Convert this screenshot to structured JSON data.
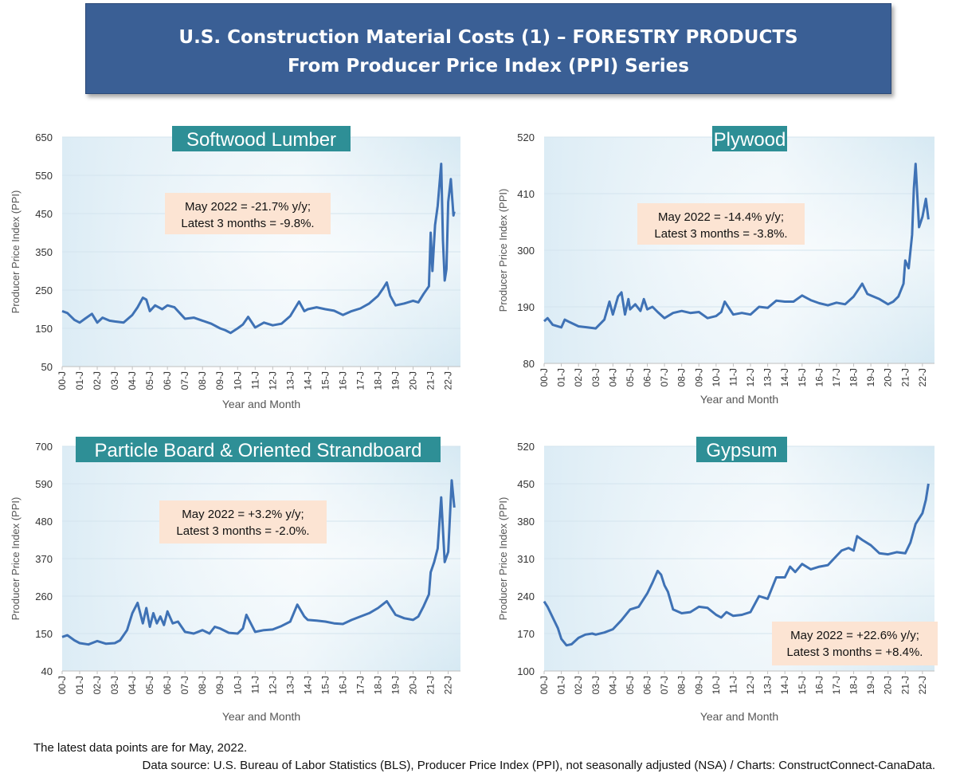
{
  "header": {
    "title_line1": "U.S. Construction Material Costs (1) – FORESTRY PRODUCTS",
    "title_line2": "From Producer Price Index (PPI) Series"
  },
  "footer": {
    "latest_note": "The latest data points are for May, 2022.",
    "source": "Data source: U.S. Bureau of Labor Statistics (BLS), Producer Price Index (PPI), not seasonally adjusted (NSA) / Charts: ConstructConnect-CanaData."
  },
  "colors": {
    "line": "#3f72b5",
    "plot_bg_top": "#ffffff",
    "plot_bg_bottom": "#d6e9f3",
    "title_bg": "#2e8f96",
    "callout_bg": "#fce4d3",
    "grid": "#d4e4ee"
  },
  "chart_data": [
    {
      "type": "line",
      "title": "Softwood Lumber",
      "ylabel": "Producer Price Index (PPI)",
      "xlabel": "Year and Month",
      "ylim": [
        50,
        650
      ],
      "yticks": [
        50,
        150,
        250,
        350,
        450,
        550,
        650
      ],
      "xticks": [
        "00-J",
        "01-J",
        "02-J",
        "03-J",
        "04-J",
        "05-J",
        "06-J",
        "07-J",
        "08-J",
        "09-J",
        "10-J",
        "11-J",
        "12-J",
        "13-J",
        "14-J",
        "15-J",
        "16-J",
        "17-J",
        "18-J",
        "19-J",
        "20-J",
        "21-J",
        "22-J"
      ],
      "annotation": [
        "May 2022 = -21.7% y/y;",
        "Latest 3 months = -9.8%."
      ],
      "grid": true,
      "series": [
        {
          "x": [
            2000.0,
            2000.3,
            2000.7,
            2001.0,
            2001.3,
            2001.7,
            2002.0,
            2002.3,
            2002.7,
            2003.0,
            2003.5,
            2004.0,
            2004.3,
            2004.6,
            2004.8,
            2005.0,
            2005.3,
            2005.7,
            2006.0,
            2006.4,
            2006.8,
            2007.0,
            2007.5,
            2008.0,
            2008.5,
            2009.0,
            2009.3,
            2009.6,
            2010.0,
            2010.3,
            2010.6,
            2011.0,
            2011.5,
            2012.0,
            2012.5,
            2013.0,
            2013.3,
            2013.5,
            2013.8,
            2014.0,
            2014.5,
            2015.0,
            2015.5,
            2016.0,
            2016.5,
            2017.0,
            2017.5,
            2018.0,
            2018.3,
            2018.5,
            2018.7,
            2019.0,
            2019.5,
            2020.0,
            2020.3,
            2020.6,
            2020.9,
            2021.0,
            2021.1,
            2021.25,
            2021.4,
            2021.6,
            2021.7,
            2021.8,
            2021.9,
            2022.0,
            2022.15,
            2022.3,
            2022.35
          ],
          "y": [
            195,
            190,
            172,
            165,
            175,
            188,
            165,
            178,
            170,
            168,
            165,
            185,
            205,
            230,
            225,
            195,
            210,
            200,
            210,
            205,
            185,
            175,
            178,
            170,
            162,
            150,
            145,
            138,
            150,
            160,
            180,
            152,
            165,
            158,
            162,
            182,
            205,
            220,
            195,
            200,
            205,
            200,
            196,
            185,
            195,
            202,
            215,
            235,
            255,
            270,
            235,
            210,
            215,
            222,
            218,
            240,
            260,
            400,
            300,
            420,
            470,
            580,
            380,
            275,
            305,
            480,
            540,
            445,
            455
          ]
        }
      ]
    },
    {
      "type": "line",
      "title": "Plywood",
      "ylabel": "Producer Price Index (PPI)",
      "xlabel": "Year and Month",
      "ylim": [
        80,
        520
      ],
      "yticks": [
        80,
        190,
        300,
        410,
        520
      ],
      "xticks": [
        "00-J",
        "01-J",
        "02-J",
        "03-J",
        "04-J",
        "05-J",
        "06-J",
        "07-J",
        "08-J",
        "09-J",
        "10-J",
        "11-J",
        "12-J",
        "13-J",
        "14-J",
        "15-J",
        "16-J",
        "17-J",
        "18-J",
        "19-J",
        "20-J",
        "21-J",
        "22-J"
      ],
      "annotation": [
        "May 2022 = -14.4% y/y;",
        "Latest 3 months = -3.8%."
      ],
      "grid": true,
      "series": [
        {
          "x": [
            2000.0,
            2000.2,
            2000.5,
            2001.0,
            2001.2,
            2001.5,
            2002.0,
            2002.5,
            2003.0,
            2003.5,
            2003.8,
            2004.0,
            2004.3,
            2004.5,
            2004.7,
            2004.9,
            2005.0,
            2005.3,
            2005.6,
            2005.8,
            2006.0,
            2006.3,
            2006.6,
            2007.0,
            2007.5,
            2008.0,
            2008.5,
            2009.0,
            2009.5,
            2010.0,
            2010.3,
            2010.5,
            2011.0,
            2011.5,
            2012.0,
            2012.5,
            2013.0,
            2013.5,
            2014.0,
            2014.5,
            2015.0,
            2015.5,
            2016.0,
            2016.5,
            2017.0,
            2017.5,
            2018.0,
            2018.3,
            2018.5,
            2018.8,
            2019.0,
            2019.5,
            2020.0,
            2020.3,
            2020.6,
            2020.9,
            2021.0,
            2021.2,
            2021.4,
            2021.5,
            2021.6,
            2021.8,
            2022.0,
            2022.2,
            2022.35
          ],
          "y": [
            162,
            168,
            155,
            150,
            165,
            160,
            152,
            150,
            148,
            165,
            200,
            175,
            210,
            218,
            175,
            205,
            185,
            195,
            182,
            205,
            185,
            190,
            180,
            168,
            178,
            182,
            178,
            180,
            168,
            172,
            180,
            200,
            175,
            178,
            175,
            190,
            188,
            202,
            200,
            200,
            212,
            203,
            197,
            193,
            198,
            195,
            210,
            225,
            235,
            215,
            212,
            205,
            195,
            200,
            210,
            235,
            280,
            265,
            330,
            420,
            468,
            345,
            365,
            400,
            360
          ]
        }
      ]
    },
    {
      "type": "line",
      "title": "Particle Board & Oriented Strandboard",
      "ylabel": "Producer Price Index (PPI)",
      "xlabel": "Year and Month",
      "ylim": [
        40,
        700
      ],
      "yticks": [
        40,
        150,
        260,
        370,
        480,
        590,
        700
      ],
      "xticks": [
        "00-J",
        "01-J",
        "02-J",
        "03-J",
        "04-J",
        "05-J",
        "06-J",
        "07-J",
        "08-J",
        "09-J",
        "10-J",
        "11-J",
        "12-J",
        "13-J",
        "14-J",
        "15-J",
        "16-J",
        "17-J",
        "18-J",
        "19-J",
        "20-J",
        "21-J",
        "22-J"
      ],
      "annotation": [
        "May 2022 = +3.2% y/y;",
        "Latest 3 months = -2.0%."
      ],
      "grid": true,
      "series": [
        {
          "x": [
            2000.0,
            2000.3,
            2000.7,
            2001.0,
            2001.5,
            2002.0,
            2002.5,
            2003.0,
            2003.3,
            2003.7,
            2004.0,
            2004.3,
            2004.6,
            2004.8,
            2005.0,
            2005.2,
            2005.4,
            2005.6,
            2005.8,
            2006.0,
            2006.3,
            2006.6,
            2007.0,
            2007.5,
            2008.0,
            2008.4,
            2008.7,
            2009.0,
            2009.5,
            2010.0,
            2010.3,
            2010.5,
            2011.0,
            2011.5,
            2012.0,
            2012.5,
            2013.0,
            2013.4,
            2013.8,
            2014.0,
            2014.5,
            2015.0,
            2015.5,
            2016.0,
            2016.5,
            2017.0,
            2017.5,
            2018.0,
            2018.5,
            2019.0,
            2019.5,
            2020.0,
            2020.3,
            2020.6,
            2020.9,
            2021.0,
            2021.2,
            2021.4,
            2021.6,
            2021.8,
            2022.0,
            2022.2,
            2022.35
          ],
          "y": [
            140,
            145,
            130,
            122,
            118,
            128,
            120,
            122,
            130,
            160,
            210,
            240,
            180,
            225,
            170,
            210,
            180,
            200,
            175,
            215,
            180,
            185,
            155,
            150,
            160,
            150,
            170,
            165,
            152,
            150,
            165,
            205,
            155,
            160,
            162,
            172,
            185,
            235,
            200,
            190,
            188,
            185,
            180,
            178,
            190,
            200,
            210,
            225,
            245,
            205,
            195,
            190,
            200,
            230,
            265,
            330,
            360,
            400,
            550,
            360,
            390,
            600,
            520
          ]
        }
      ]
    },
    {
      "type": "line",
      "title": "Gypsum",
      "ylabel": "Producer Price Index (PPI)",
      "xlabel": "Year and Month",
      "ylim": [
        100,
        520
      ],
      "yticks": [
        100,
        170,
        240,
        310,
        380,
        450,
        520
      ],
      "xticks": [
        "00-J",
        "01-J",
        "02-J",
        "03-J",
        "04-J",
        "05-J",
        "06-J",
        "07-J",
        "08-J",
        "09-J",
        "10-J",
        "11-J",
        "12-J",
        "13-J",
        "14-J",
        "15-J",
        "16-J",
        "17-J",
        "18-J",
        "19-J",
        "20-J",
        "21-J",
        "22-J"
      ],
      "annotation": [
        "May 2022 = +22.6% y/y;",
        "Latest 3 months = +8.4%."
      ],
      "grid": true,
      "series": [
        {
          "x": [
            2000.0,
            2000.2,
            2000.5,
            2000.8,
            2001.0,
            2001.3,
            2001.6,
            2002.0,
            2002.4,
            2002.8,
            2003.0,
            2003.5,
            2004.0,
            2004.5,
            2005.0,
            2005.5,
            2006.0,
            2006.3,
            2006.6,
            2006.8,
            2007.0,
            2007.2,
            2007.5,
            2008.0,
            2008.5,
            2009.0,
            2009.5,
            2010.0,
            2010.3,
            2010.6,
            2011.0,
            2011.5,
            2012.0,
            2012.5,
            2013.0,
            2013.5,
            2014.0,
            2014.3,
            2014.6,
            2015.0,
            2015.5,
            2016.0,
            2016.5,
            2017.0,
            2017.3,
            2017.7,
            2018.0,
            2018.2,
            2018.5,
            2019.0,
            2019.5,
            2020.0,
            2020.5,
            2021.0,
            2021.3,
            2021.6,
            2022.0,
            2022.2,
            2022.35
          ],
          "y": [
            230,
            220,
            200,
            180,
            160,
            148,
            150,
            162,
            168,
            170,
            168,
            172,
            178,
            195,
            215,
            220,
            245,
            265,
            287,
            280,
            260,
            248,
            215,
            208,
            210,
            220,
            218,
            205,
            200,
            210,
            203,
            205,
            210,
            240,
            235,
            275,
            275,
            295,
            285,
            300,
            290,
            295,
            298,
            315,
            325,
            330,
            325,
            352,
            345,
            335,
            320,
            318,
            322,
            320,
            340,
            375,
            395,
            420,
            450
          ]
        }
      ]
    }
  ]
}
